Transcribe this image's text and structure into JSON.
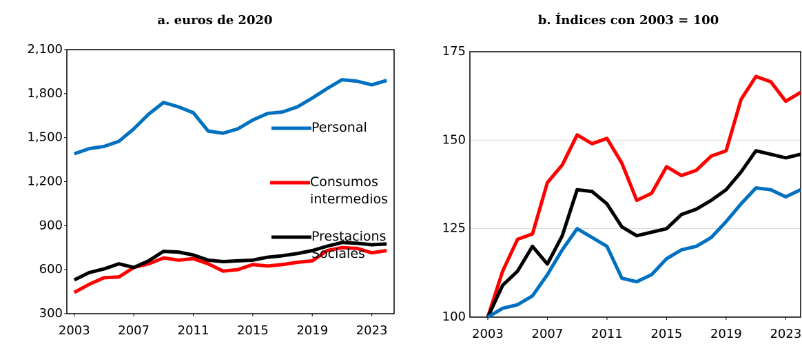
{
  "chart_data": [
    {
      "type": "line",
      "title": "a. euros de 2020",
      "x": [
        2003,
        2004,
        2005,
        2006,
        2007,
        2008,
        2009,
        2010,
        2011,
        2012,
        2013,
        2014,
        2015,
        2016,
        2017,
        2018,
        2019,
        2020,
        2021,
        2022,
        2023,
        2024
      ],
      "xlim": [
        2002.5,
        2024.5
      ],
      "xticks": [
        2003,
        2007,
        2011,
        2015,
        2019,
        2023
      ],
      "ylim": [
        300,
        2100
      ],
      "yticks": [
        {
          "value": 300,
          "label": "300"
        },
        {
          "value": 600,
          "label": "600"
        },
        {
          "value": 900,
          "label": "900"
        },
        {
          "value": 1200,
          "label": "1,200"
        },
        {
          "value": 1500,
          "label": "1,500"
        },
        {
          "value": 1800,
          "label": "1,800"
        },
        {
          "value": 2100,
          "label": "2,100"
        }
      ],
      "grid": false,
      "legend": "inline",
      "series": [
        {
          "name": "Personal",
          "color": "#0070c0",
          "values": [
            1390,
            1425,
            1440,
            1475,
            1560,
            1660,
            1740,
            1710,
            1670,
            1545,
            1530,
            1560,
            1620,
            1665,
            1675,
            1710,
            1770,
            1835,
            1895,
            1885,
            1860,
            1890
          ]
        },
        {
          "name": "Consumos intermedios",
          "color": "#ff0000",
          "values": [
            445,
            500,
            545,
            550,
            615,
            640,
            680,
            665,
            675,
            640,
            590,
            600,
            635,
            625,
            635,
            650,
            660,
            730,
            750,
            745,
            715,
            730
          ]
        },
        {
          "name": "Prestacions Sociales",
          "color": "#000000",
          "values": [
            530,
            580,
            605,
            640,
            615,
            660,
            725,
            720,
            700,
            665,
            655,
            660,
            665,
            685,
            695,
            710,
            730,
            760,
            785,
            780,
            770,
            775
          ]
        }
      ]
    },
    {
      "type": "line",
      "title": "b. Índices con 2003 = 100",
      "x": [
        2003,
        2004,
        2005,
        2006,
        2007,
        2008,
        2009,
        2010,
        2011,
        2012,
        2013,
        2014,
        2015,
        2016,
        2017,
        2018,
        2019,
        2020,
        2021,
        2022,
        2023,
        2024
      ],
      "xlim": [
        2001.8,
        2024
      ],
      "xticks": [
        2003,
        2007,
        2011,
        2015,
        2019,
        2023
      ],
      "ylim": [
        100,
        175
      ],
      "yticks": [
        100,
        125,
        150,
        175
      ],
      "grid": true,
      "series": [
        {
          "color": "#ff0000",
          "values": [
            100,
            113,
            122,
            123.5,
            138,
            143,
            151.5,
            149,
            150.5,
            143.5,
            133,
            135,
            142.5,
            140,
            141.5,
            145.5,
            147,
            161.5,
            168,
            166.5,
            161,
            163.5
          ]
        },
        {
          "color": "#000000",
          "values": [
            100,
            109,
            113,
            120,
            115,
            123,
            136,
            135.5,
            132,
            125.5,
            123,
            124,
            125,
            129,
            130.5,
            133,
            136,
            141,
            147,
            146,
            145,
            146
          ]
        },
        {
          "color": "#0070c0",
          "values": [
            100,
            102.5,
            103.5,
            106,
            112,
            119,
            125,
            122.5,
            120,
            111,
            110,
            112,
            116.5,
            119,
            120,
            122.5,
            127,
            132,
            136.5,
            136,
            134,
            136
          ]
        }
      ]
    }
  ]
}
